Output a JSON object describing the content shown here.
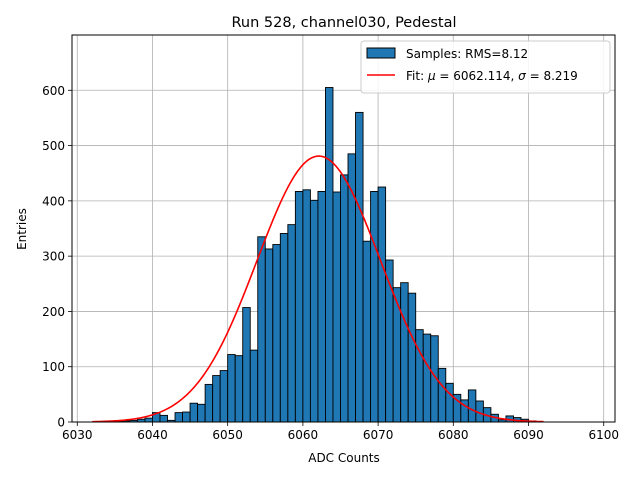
{
  "chart_data": {
    "type": "bar",
    "title": "Run 528, channel030, Pedestal",
    "xlabel": "ADC Counts",
    "ylabel": "Entries",
    "xlim": [
      6029.3,
      6101.5
    ],
    "ylim": [
      0,
      700
    ],
    "xticks": [
      6030,
      6040,
      6050,
      6060,
      6070,
      6080,
      6090,
      6100
    ],
    "yticks": [
      0,
      100,
      200,
      300,
      400,
      500,
      600
    ],
    "grid": true,
    "legend_position": "top-right",
    "legend": {
      "hist_label": "Samples: RMS=8.12",
      "fit_label_prefix": "Fit: ",
      "mu_symbol": "μ",
      "mu_value": " = 6062.114, ",
      "sigma_symbol": "σ",
      "sigma_value": " = 8.219"
    },
    "histogram": {
      "bin_start": 6035,
      "bin_width": 1,
      "color": "#1f77b4",
      "edge_color": "#000000",
      "values": [
        1,
        2,
        3,
        5,
        7,
        17,
        12,
        3,
        17,
        18,
        34,
        32,
        68,
        84,
        93,
        122,
        120,
        207,
        130,
        335,
        313,
        321,
        341,
        357,
        417,
        420,
        401,
        417,
        605,
        416,
        447,
        485,
        560,
        327,
        417,
        425,
        293,
        243,
        252,
        233,
        167,
        159,
        156,
        97,
        70,
        50,
        40,
        58,
        38,
        26,
        14,
        4,
        11,
        8,
        5,
        2
      ]
    },
    "fit": {
      "mu": 6062.114,
      "sigma": 8.219,
      "amplitude": 481,
      "x_range": [
        6032,
        6092
      ],
      "color": "#ff0000"
    }
  }
}
